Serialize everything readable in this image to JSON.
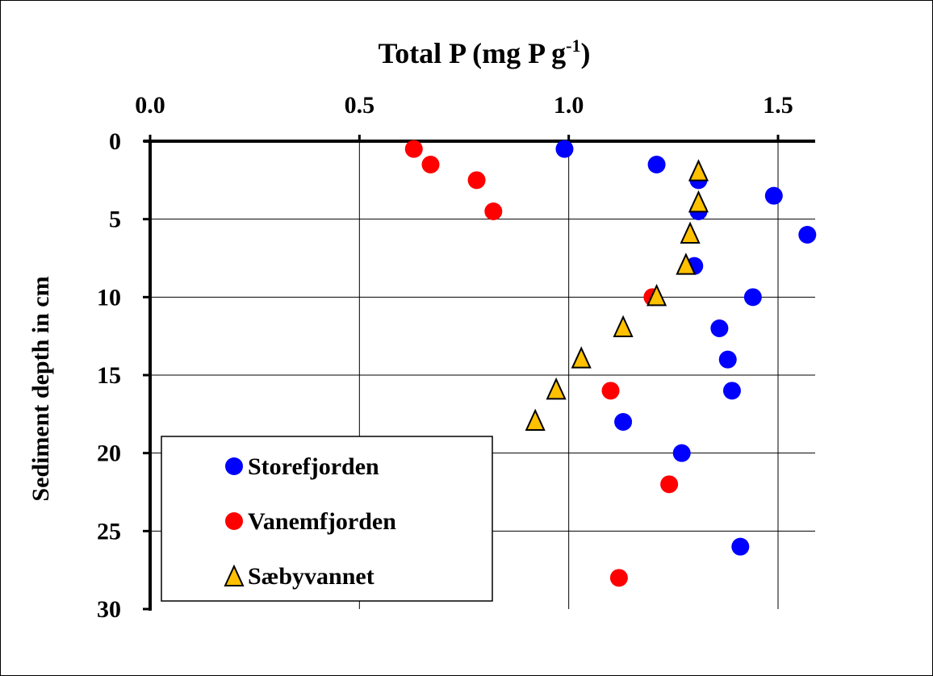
{
  "chart_data": {
    "type": "scatter",
    "title": "Total P (mg P g",
    "title_superscript": "-1",
    "title_suffix": ")",
    "xlabel": "Total P (mg P g-1)",
    "ylabel": "Sediment depth in cm",
    "xlim": [
      0.0,
      1.6
    ],
    "ylim": [
      30,
      0
    ],
    "x_axis_position": "top",
    "y_axis_inverted": true,
    "x_ticks": [
      "0.0",
      "0.5",
      "1.0",
      "1.5"
    ],
    "x_tick_values": [
      0.0,
      0.5,
      1.0,
      1.5
    ],
    "y_ticks": [
      "0",
      "5",
      "10",
      "15",
      "20",
      "25",
      "30"
    ],
    "y_tick_values": [
      0,
      5,
      10,
      15,
      20,
      25,
      30
    ],
    "grid": true,
    "legend_position": "bottom-left",
    "series": [
      {
        "name": "Storefjorden",
        "marker": "circle",
        "color": "#0000ff",
        "points": [
          {
            "x": 0.99,
            "y": 0.5
          },
          {
            "x": 1.21,
            "y": 1.5
          },
          {
            "x": 1.31,
            "y": 2.5
          },
          {
            "x": 1.49,
            "y": 3.5
          },
          {
            "x": 1.31,
            "y": 4.5
          },
          {
            "x": 1.57,
            "y": 6
          },
          {
            "x": 1.3,
            "y": 8
          },
          {
            "x": 1.44,
            "y": 10
          },
          {
            "x": 1.36,
            "y": 12
          },
          {
            "x": 1.38,
            "y": 14
          },
          {
            "x": 1.39,
            "y": 16
          },
          {
            "x": 1.13,
            "y": 18
          },
          {
            "x": 1.27,
            "y": 20
          },
          {
            "x": 1.41,
            "y": 26
          }
        ]
      },
      {
        "name": "Vanemfjorden",
        "marker": "circle",
        "color": "#ff0000",
        "points": [
          {
            "x": 0.63,
            "y": 0.5
          },
          {
            "x": 0.67,
            "y": 1.5
          },
          {
            "x": 0.78,
            "y": 2.5
          },
          {
            "x": 0.82,
            "y": 4.5
          },
          {
            "x": 1.2,
            "y": 10
          },
          {
            "x": 1.1,
            "y": 16
          },
          {
            "x": 1.24,
            "y": 22
          },
          {
            "x": 1.12,
            "y": 28
          }
        ]
      },
      {
        "name": "Sæbyvannet",
        "marker": "triangle",
        "color": "#ffc000",
        "points": [
          {
            "x": 1.31,
            "y": 2
          },
          {
            "x": 1.31,
            "y": 4
          },
          {
            "x": 1.29,
            "y": 6
          },
          {
            "x": 1.28,
            "y": 8
          },
          {
            "x": 1.21,
            "y": 10
          },
          {
            "x": 1.13,
            "y": 12
          },
          {
            "x": 1.03,
            "y": 14
          },
          {
            "x": 0.97,
            "y": 16
          },
          {
            "x": 0.92,
            "y": 18
          }
        ]
      }
    ]
  }
}
